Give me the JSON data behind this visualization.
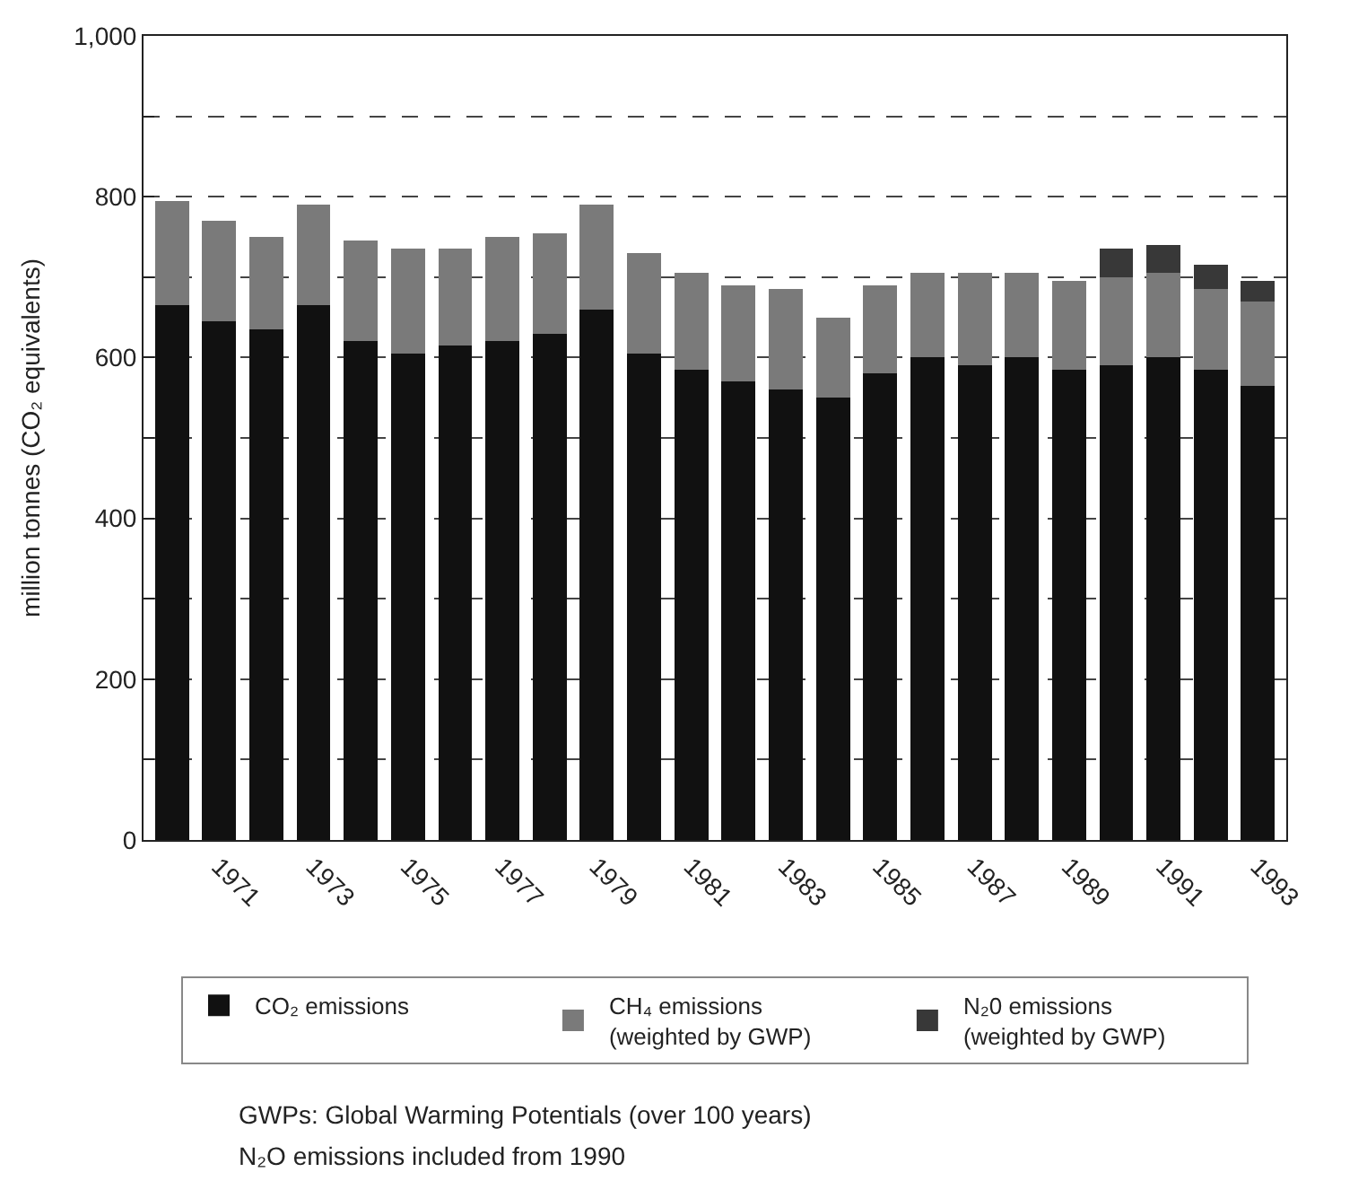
{
  "chart_data": {
    "type": "bar",
    "stacked": true,
    "ylabel": "million tonnes (CO₂ equivalents)",
    "categories": [
      null,
      "1971",
      null,
      "1973",
      null,
      "1975",
      null,
      "1977",
      null,
      "1979",
      null,
      "1981",
      null,
      "1983",
      null,
      "1985",
      null,
      "1987",
      null,
      "1989",
      null,
      "1991",
      null,
      "1993"
    ],
    "series": [
      {
        "name": "CO₂ emissions",
        "color": "#111111",
        "values": [
          665,
          645,
          635,
          665,
          620,
          605,
          615,
          620,
          630,
          660,
          605,
          585,
          570,
          560,
          550,
          580,
          600,
          590,
          600,
          585,
          590,
          600,
          585,
          565
        ]
      },
      {
        "name": "CH₄ emissions\n(weighted by GWP)",
        "color": "#7a7a7a",
        "values": [
          130,
          125,
          115,
          125,
          125,
          130,
          120,
          130,
          125,
          130,
          125,
          120,
          120,
          125,
          100,
          110,
          105,
          115,
          105,
          110,
          110,
          105,
          100,
          105
        ]
      },
      {
        "name": "N₂0 emissions\n(weighted by GWP)",
        "color": "#383838",
        "values": [
          null,
          null,
          null,
          null,
          null,
          null,
          null,
          null,
          null,
          null,
          null,
          null,
          null,
          null,
          null,
          null,
          null,
          null,
          null,
          null,
          35,
          35,
          30,
          25
        ]
      }
    ],
    "ylim": [
      0,
      1000
    ],
    "yticks": [
      0,
      {
        "value": 100,
        "label": null
      },
      200,
      {
        "value": 300,
        "label": null
      },
      400,
      {
        "value": 500,
        "label": null
      },
      600,
      {
        "value": 700,
        "label": null
      },
      800,
      {
        "value": 900,
        "label": null
      },
      {
        "value": 1000,
        "label": "1,000"
      }
    ],
    "grid": "y",
    "line_style": "dashed",
    "legend": "bottom",
    "annotations": [
      "GWPs: Global Warming Potentials (over 100 years)",
      "N₂O emissions included from 1990"
    ]
  }
}
